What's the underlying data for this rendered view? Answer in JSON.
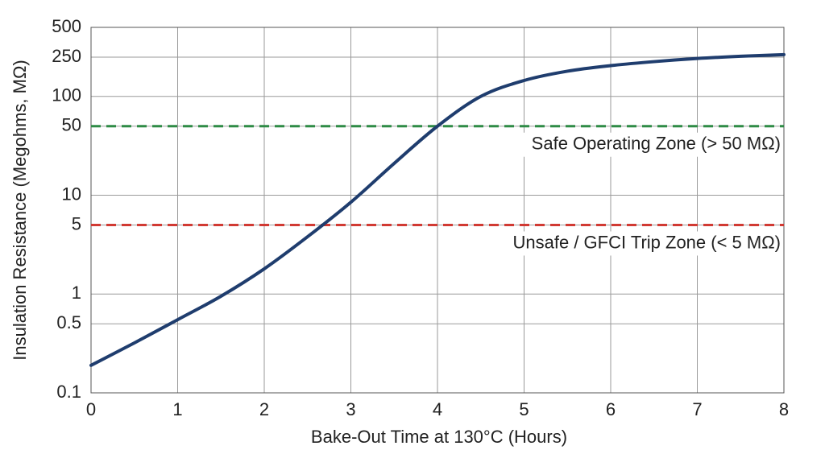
{
  "chart_data": {
    "type": "line",
    "x_label": "Bake-Out Time at 130°C (Hours)",
    "y_label": "Insulation Resistance (Megohms, MΩ)",
    "x": [
      0,
      0.5,
      1,
      1.5,
      2,
      2.5,
      3,
      3.5,
      4,
      4.5,
      5,
      5.5,
      6,
      6.5,
      7,
      7.5,
      8
    ],
    "series": [
      {
        "color": "#1f3d6e",
        "values": [
          0.19,
          0.32,
          0.55,
          0.95,
          1.8,
          3.8,
          8.5,
          21,
          50,
          100,
          145,
          180,
          205,
          225,
          242,
          255,
          265
        ]
      }
    ],
    "xlim": [
      0,
      8
    ],
    "xticks": [
      0,
      1,
      2,
      3,
      4,
      5,
      6,
      7,
      8
    ],
    "ylim": [
      0.1,
      500
    ],
    "yticks": [
      0.1,
      0.5,
      1,
      5,
      10,
      50,
      100,
      250,
      500
    ],
    "y_scale": "log",
    "grid": true,
    "reference_lines": [
      {
        "value": 50,
        "label": "Safe Operating Zone (> 50 MΩ)",
        "color": "#2e8b45"
      },
      {
        "value": 5,
        "label": "Unsafe / GFCI Trip Zone (< 5 MΩ)",
        "color": "#d13a33"
      }
    ]
  }
}
